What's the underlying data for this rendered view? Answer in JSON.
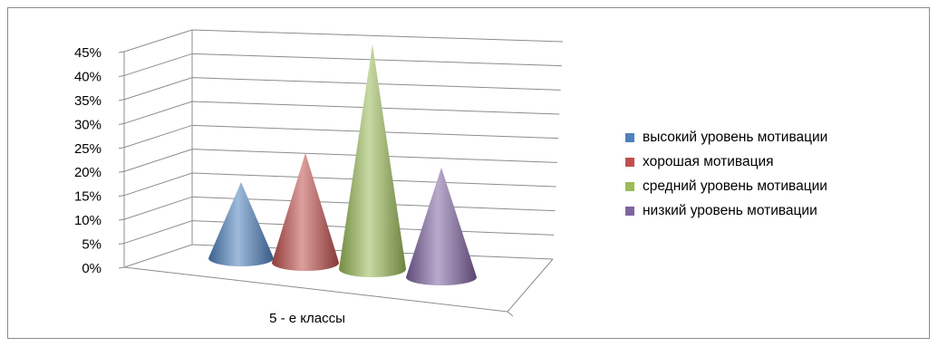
{
  "chart_data": {
    "type": "bar",
    "subtype": "3d-cone",
    "categories": [
      "5 - е классы"
    ],
    "series": [
      {
        "name": "высокий уровень мотивации",
        "values": [
          14
        ],
        "color": "#4F81BD"
      },
      {
        "name": "хорошая мотивация",
        "values": [
          21
        ],
        "color": "#C0504D"
      },
      {
        "name": "средний уровень мотивации",
        "values": [
          45
        ],
        "color": "#9BBB59"
      },
      {
        "name": "низкий уровень мотивации",
        "values": [
          21
        ],
        "color": "#8064A2"
      }
    ],
    "y_ticks": [
      "0%",
      "5%",
      "10%",
      "15%",
      "20%",
      "25%",
      "30%",
      "35%",
      "40%",
      "45%"
    ],
    "ylim": [
      0,
      45
    ],
    "grid": true,
    "legend": "right"
  }
}
